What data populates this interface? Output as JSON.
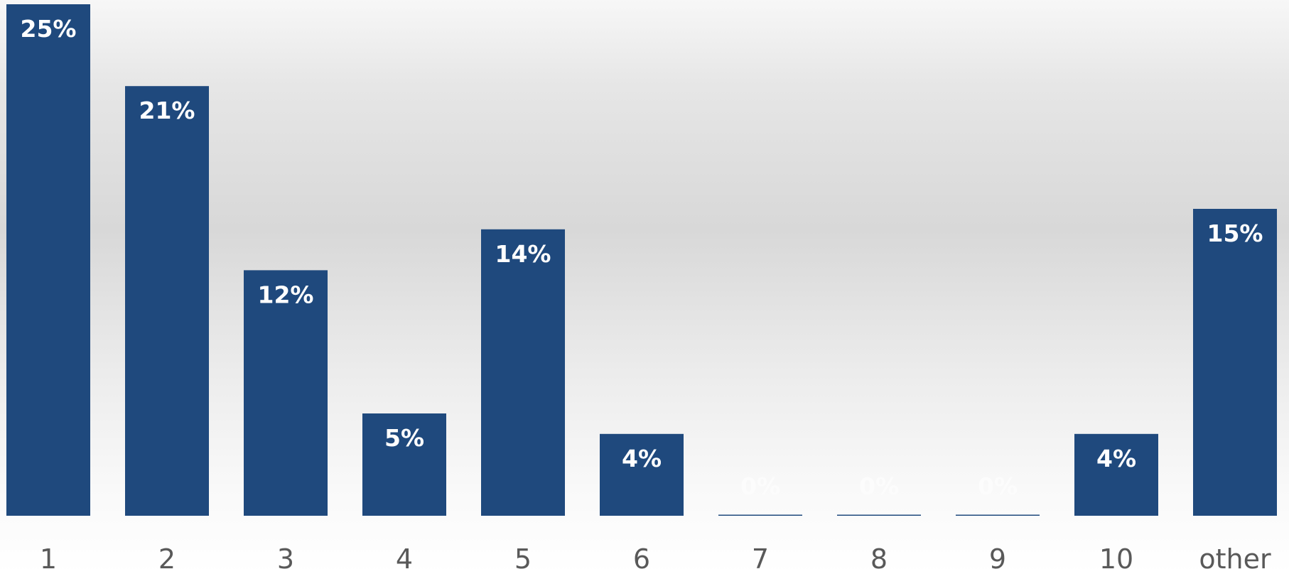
{
  "chart_data": {
    "type": "bar",
    "title": "",
    "xlabel": "",
    "ylabel": "",
    "categories": [
      "1",
      "2",
      "3",
      "4",
      "5",
      "6",
      "7",
      "8",
      "9",
      "10",
      "other"
    ],
    "values": [
      25,
      21,
      12,
      5,
      14,
      4,
      0,
      0,
      0,
      4,
      15
    ],
    "data_labels": [
      "25%",
      "21%",
      "12%",
      "5%",
      "14%",
      "4%",
      "0%",
      "0%",
      "0%",
      "4%",
      "15%"
    ],
    "ylim": [
      0,
      25
    ],
    "grid": false,
    "legend": "none",
    "bar_color": "#1f497d",
    "label_color": "#ffffff",
    "tick_color": "#595959"
  }
}
